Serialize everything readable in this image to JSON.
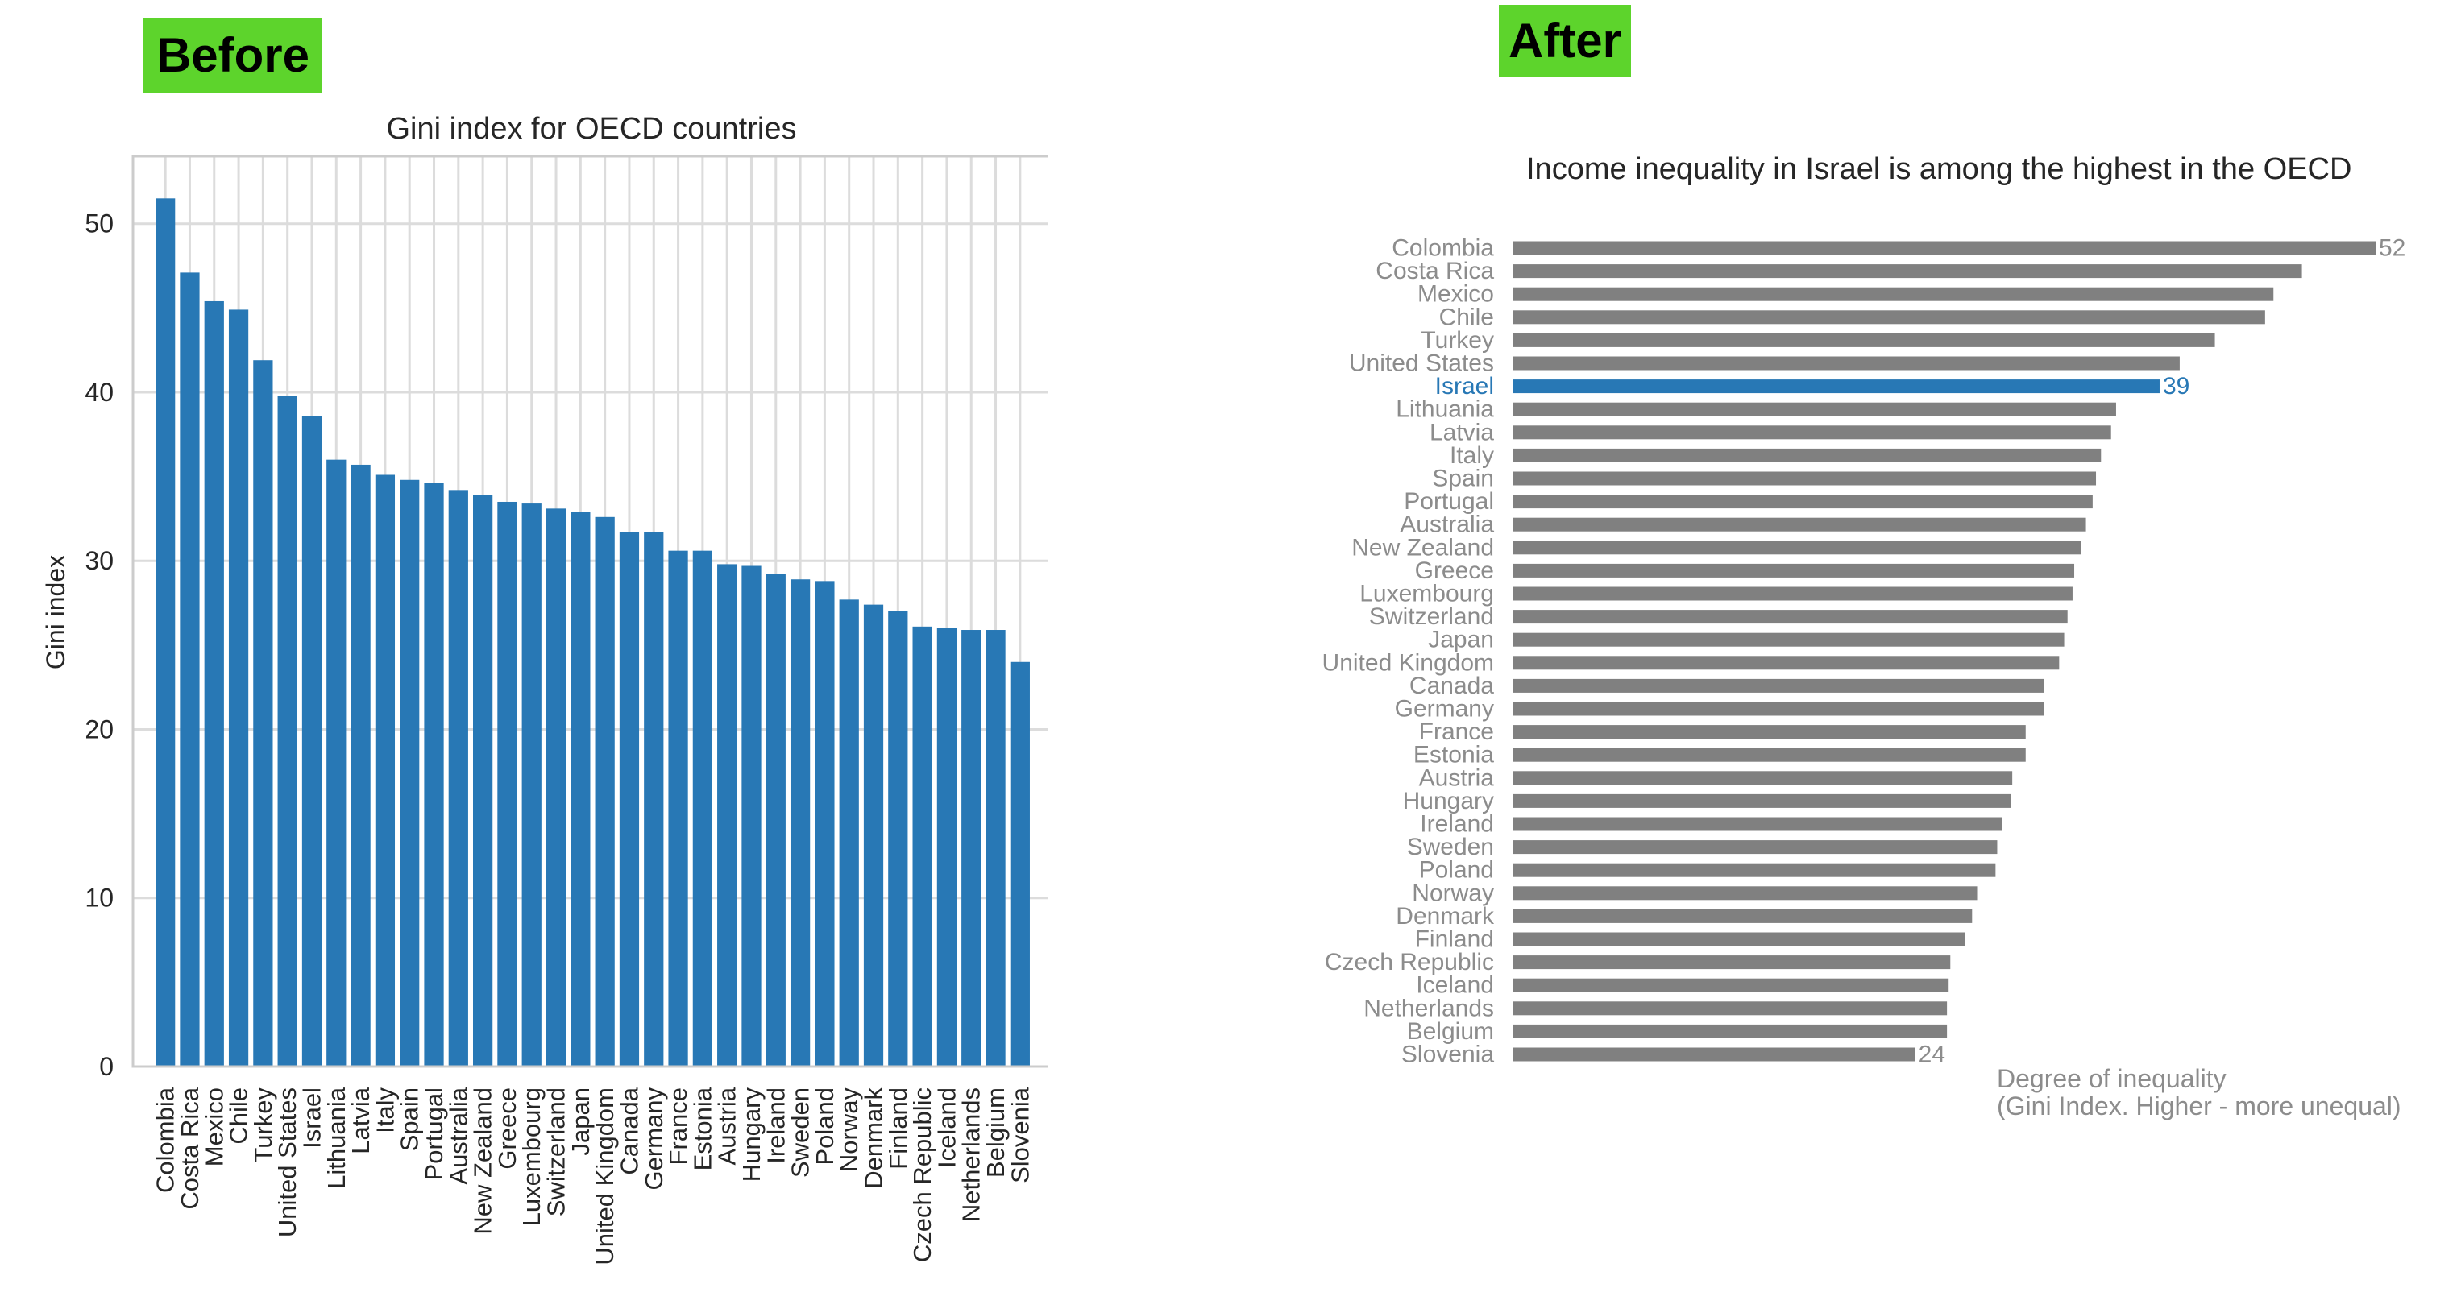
{
  "labels": {
    "before": "Before",
    "after": "After"
  },
  "chart_data": [
    {
      "type": "bar",
      "title": "Gini index for OECD countries",
      "xlabel": "",
      "ylabel": "Gini index",
      "ylim": [
        0,
        54
      ],
      "yticks": [
        0,
        10,
        20,
        30,
        40,
        50
      ],
      "grid": true,
      "bar_color": "#2878b5",
      "categories": [
        "Colombia",
        "Costa Rica",
        "Mexico",
        "Chile",
        "Turkey",
        "United States",
        "Israel",
        "Lithuania",
        "Latvia",
        "Italy",
        "Spain",
        "Portugal",
        "Australia",
        "New Zealand",
        "Greece",
        "Luxembourg",
        "Switzerland",
        "Japan",
        "United Kingdom",
        "Canada",
        "Germany",
        "France",
        "Estonia",
        "Austria",
        "Hungary",
        "Ireland",
        "Sweden",
        "Poland",
        "Norway",
        "Denmark",
        "Finland",
        "Czech Republic",
        "Iceland",
        "Netherlands",
        "Belgium",
        "Slovenia"
      ],
      "values": [
        51.5,
        47.1,
        45.4,
        44.9,
        41.9,
        39.8,
        38.6,
        36.0,
        35.7,
        35.1,
        34.8,
        34.6,
        34.2,
        33.9,
        33.5,
        33.4,
        33.1,
        32.9,
        32.6,
        31.7,
        31.7,
        30.6,
        30.6,
        29.8,
        29.7,
        29.2,
        28.9,
        28.8,
        27.7,
        27.4,
        27.0,
        26.1,
        26.0,
        25.9,
        25.9,
        24.0
      ]
    },
    {
      "type": "bar",
      "orientation": "horizontal",
      "title": "Income inequality in Israel is among the highest in the OECD",
      "annotation_lines": [
        "Degree of inequality",
        "(Gini Index. Higher - more unequal)"
      ],
      "grid": false,
      "bar_color": "#808080",
      "highlight_color": "#2878b5",
      "label_color": "#8c8c8c",
      "highlight": "Israel",
      "value_labels": {
        "Colombia": "52",
        "Israel": "39",
        "Slovenia": "24"
      },
      "categories": [
        "Colombia",
        "Costa Rica",
        "Mexico",
        "Chile",
        "Turkey",
        "United States",
        "Israel",
        "Lithuania",
        "Latvia",
        "Italy",
        "Spain",
        "Portugal",
        "Australia",
        "New Zealand",
        "Greece",
        "Luxembourg",
        "Switzerland",
        "Japan",
        "United Kingdom",
        "Canada",
        "Germany",
        "France",
        "Estonia",
        "Austria",
        "Hungary",
        "Ireland",
        "Sweden",
        "Poland",
        "Norway",
        "Denmark",
        "Finland",
        "Czech Republic",
        "Iceland",
        "Netherlands",
        "Belgium",
        "Slovenia"
      ],
      "values": [
        51.5,
        47.1,
        45.4,
        44.9,
        41.9,
        39.8,
        38.6,
        36.0,
        35.7,
        35.1,
        34.8,
        34.6,
        34.2,
        33.9,
        33.5,
        33.4,
        33.1,
        32.9,
        32.6,
        31.7,
        31.7,
        30.6,
        30.6,
        29.8,
        29.7,
        29.2,
        28.9,
        28.8,
        27.7,
        27.4,
        27.0,
        26.1,
        26.0,
        25.9,
        25.9,
        24.0
      ]
    }
  ]
}
